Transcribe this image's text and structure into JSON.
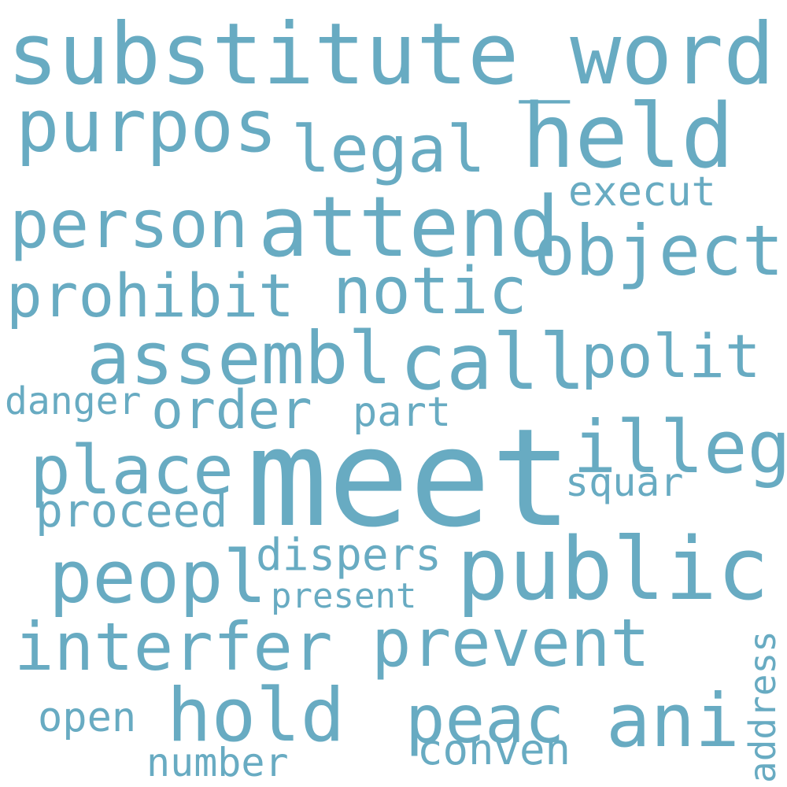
{
  "color": "#68abc2",
  "background": "#ffffff",
  "words": {
    "substitute_word": "substitute_word",
    "purpos": "purpos",
    "legal": "legal",
    "held": "held",
    "execut": "execut",
    "person": "person",
    "attend": "attend",
    "object": "object",
    "prohibit": "prohibit",
    "notic": "notic",
    "assembl": "assembl",
    "call": "call",
    "polit": "polit",
    "danger": "danger",
    "order": "order",
    "part": "part",
    "illeg": "illeg",
    "place": "place",
    "meet": "meet",
    "squar": "squar",
    "proceed": "proceed",
    "peopl": "peopl",
    "dispers": "dispers",
    "public": "public",
    "present": "present",
    "interfer": "interfer",
    "prevent": "prevent",
    "address": "address",
    "open": "open",
    "hold": "hold",
    "peac": "peac",
    "ani": "ani",
    "conven": "conven",
    "number": "number"
  }
}
